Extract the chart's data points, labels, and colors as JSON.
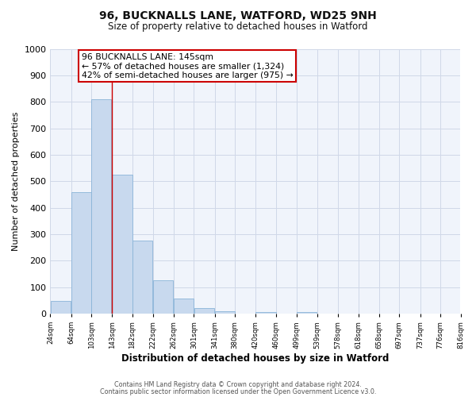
{
  "title1": "96, BUCKNALLS LANE, WATFORD, WD25 9NH",
  "title2": "Size of property relative to detached houses in Watford",
  "xlabel": "Distribution of detached houses by size in Watford",
  "ylabel": "Number of detached properties",
  "bar_left_edges": [
    24,
    64,
    103,
    143,
    182,
    222,
    262,
    301,
    341,
    380,
    420,
    460,
    499,
    539,
    578,
    618,
    658,
    697,
    737,
    776
  ],
  "bar_heights": [
    47,
    460,
    810,
    525,
    275,
    125,
    58,
    22,
    10,
    0,
    7,
    0,
    5,
    0,
    0,
    0,
    0,
    0,
    0,
    0
  ],
  "bin_width": 39,
  "tick_labels": [
    "24sqm",
    "64sqm",
    "103sqm",
    "143sqm",
    "182sqm",
    "222sqm",
    "262sqm",
    "301sqm",
    "341sqm",
    "380sqm",
    "420sqm",
    "460sqm",
    "499sqm",
    "539sqm",
    "578sqm",
    "618sqm",
    "658sqm",
    "697sqm",
    "737sqm",
    "776sqm",
    "816sqm"
  ],
  "bar_color": "#c8d9ee",
  "bar_edge_color": "#8ab4d8",
  "ylim": [
    0,
    1000
  ],
  "yticks": [
    0,
    100,
    200,
    300,
    400,
    500,
    600,
    700,
    800,
    900,
    1000
  ],
  "vline_x": 143,
  "vline_color": "#cc0000",
  "annotation_line1": "96 BUCKNALLS LANE: 145sqm",
  "annotation_line2": "← 57% of detached houses are smaller (1,324)",
  "annotation_line3": "42% of semi-detached houses are larger (975) →",
  "annotation_box_color": "white",
  "annotation_box_edge_color": "#cc0000",
  "footer1": "Contains HM Land Registry data © Crown copyright and database right 2024.",
  "footer2": "Contains public sector information licensed under the Open Government Licence v3.0.",
  "bg_color": "#ffffff",
  "plot_bg_color": "#f0f4fb",
  "grid_color": "#d0d8e8"
}
